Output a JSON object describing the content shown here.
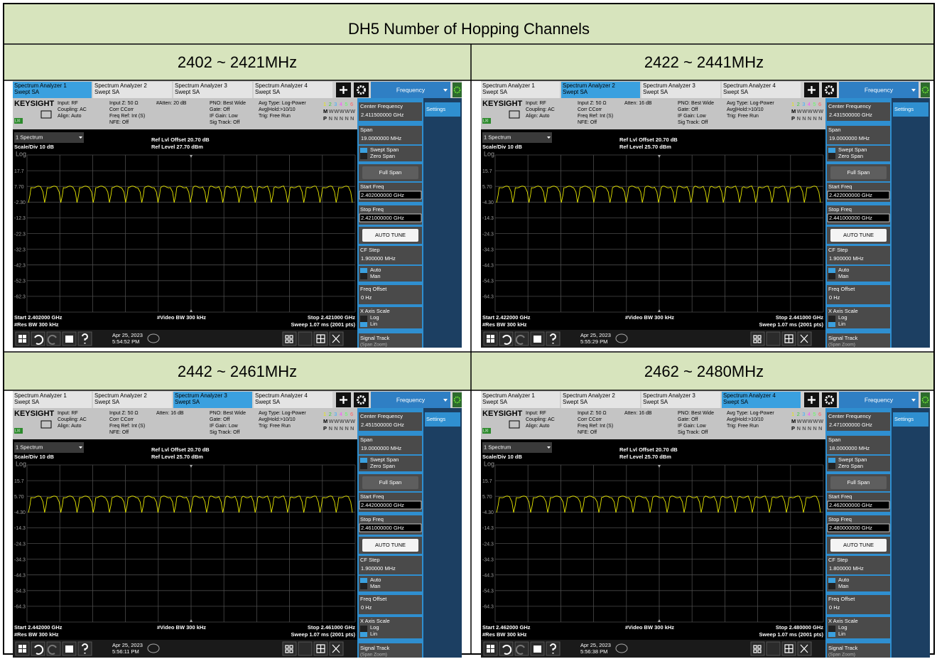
{
  "title": "DH5 Number of Hopping Channels",
  "common": {
    "tabs": [
      [
        "Spectrum Analyzer 1",
        "Swept SA"
      ],
      [
        "Spectrum Analyzer 2",
        "Swept SA"
      ],
      [
        "Spectrum Analyzer 3",
        "Swept SA"
      ],
      [
        "Spectrum Analyzer 4",
        "Swept SA"
      ]
    ],
    "menu_title": "Frequency",
    "brand": "KEYSIGHT",
    "lxi": "LXI",
    "info_cols": [
      [
        "Input: RF",
        "Coupling: AC",
        "Align: Auto"
      ],
      [
        "Input Z: 50 Ω",
        "Corr CCorr",
        "Freq Ref: Int (S)",
        "NFE: Off"
      ],
      [
        "PNO: Best Wide",
        "Gate: Off",
        "IF Gain: Low",
        "Sig Track: Off"
      ],
      [
        "Avg Type: Log-Power",
        "Avg|Hold:>10/10",
        "Trig: Free Run"
      ]
    ],
    "trace_rows": [
      [
        "1",
        "2",
        "3",
        "4",
        "5",
        "6"
      ],
      [
        "M",
        "W",
        "W",
        "W",
        "W",
        "W"
      ],
      [
        "P",
        "N",
        "N",
        "N",
        "N",
        "N"
      ]
    ],
    "spectrum_select": "1 Spectrum",
    "scale": "Scale/Div 10 dB",
    "log": "Log",
    "ref_offset": "Ref Lvl Offset 20.70 dB",
    "res_bw": "#Res BW 300 kHz",
    "video_bw": "#Video BW 300 kHz",
    "sweep": "Sweep 1.07 ms (2001 pts)",
    "date": "Apr 25, 2023",
    "menu": {
      "center": "Center Frequency",
      "span": "Span",
      "swept": "Swept Span",
      "zero": "Zero Span",
      "full": "Full Span",
      "start": "Start Freq",
      "stop": "Stop Freq",
      "auto_tune": "AUTO TUNE",
      "cf_step": "CF Step",
      "auto": "Auto",
      "man": "Man",
      "offset": "Freq Offset",
      "offset_value": "0 Hz",
      "x_scale": "X Axis Scale",
      "log": "Log",
      "lin": "Lin",
      "signal_track": "Signal Track",
      "span_zoom": "(Span Zoom)",
      "settings": "Settings"
    }
  },
  "panels": [
    {
      "header": "2402 ~ 2421MHz",
      "active_tab": 0,
      "atten": "#Atten: 20 dB",
      "ref_level": "Ref Level 27.70 dBm",
      "y_labels": [
        "17.7",
        "7.70",
        "-2.30",
        "-12.3",
        "-22.3",
        "-32.3",
        "-42.3",
        "-52.3",
        "-62.3"
      ],
      "start": "Start 2.402000 GHz",
      "stop": "Stop 2.421000 GHz",
      "time": "5:54:52 PM",
      "center": "2.411500000 GHz",
      "span": "19.0000000 MHz",
      "start_freq": "2.402000000 GHz",
      "stop_freq": "2.421000000 GHz",
      "cf_step": "1.900000 MHz"
    },
    {
      "header": "2422 ~ 2441MHz",
      "active_tab": 1,
      "atten": "Atten: 16 dB",
      "ref_level": "Ref Level 25.70 dBm",
      "y_labels": [
        "15.7",
        "5.70",
        "-4.30",
        "-14.3",
        "-24.3",
        "-34.3",
        "-44.3",
        "-54.3",
        "-64.3"
      ],
      "start": "Start 2.422000 GHz",
      "stop": "Stop 2.441000 GHz",
      "time": "5:55:29 PM",
      "center": "2.431500000 GHz",
      "span": "19.0000000 MHz",
      "start_freq": "2.422000000 GHz",
      "stop_freq": "2.441000000 GHz",
      "cf_step": "1.900000 MHz"
    },
    {
      "header": "2442 ~ 2461MHz",
      "active_tab": 2,
      "atten": "Atten: 16 dB",
      "ref_level": "Ref Level 25.70 dBm",
      "y_labels": [
        "15.7",
        "5.70",
        "-4.30",
        "-14.3",
        "-24.3",
        "-34.3",
        "-44.3",
        "-54.3",
        "-64.3"
      ],
      "start": "Start 2.442000 GHz",
      "stop": "Stop 2.461000 GHz",
      "time": "5:56:11 PM",
      "center": "2.451500000 GHz",
      "span": "19.0000000 MHz",
      "start_freq": "2.442000000 GHz",
      "stop_freq": "2.461000000 GHz",
      "cf_step": "1.900000 MHz"
    },
    {
      "header": "2462 ~ 2480MHz",
      "active_tab": 3,
      "atten": "Atten: 16 dB",
      "ref_level": "Ref Level 25.70 dBm",
      "y_labels": [
        "15.7",
        "5.70",
        "-4.30",
        "-14.3",
        "-24.3",
        "-34.3",
        "-44.3",
        "-54.3",
        "-64.3"
      ],
      "start": "Start 2.462000 GHz",
      "stop": "Stop 2.480000 GHz",
      "time": "5:56:38 PM",
      "center": "2.471000000 GHz",
      "span": "18.0000000 MHz",
      "start_freq": "2.462000000 GHz",
      "stop_freq": "2.480000000 GHz",
      "cf_step": "1.800000 MHz"
    }
  ]
}
